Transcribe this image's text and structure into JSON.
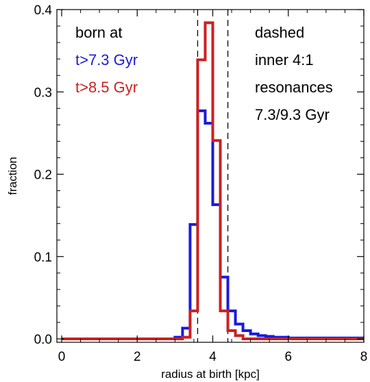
{
  "chart_data": {
    "type": "step-histogram",
    "xlabel": "radius at birth [kpc]",
    "ylabel": "fraction",
    "xlim": [
      0,
      8
    ],
    "ylim": [
      0,
      0.4
    ],
    "x_ticks": [
      0,
      2,
      4,
      6,
      8
    ],
    "y_ticks": [
      0.0,
      0.1,
      0.2,
      0.3,
      0.4
    ],
    "x_tick_labels": [
      "0",
      "2",
      "4",
      "6",
      "8"
    ],
    "y_tick_labels": [
      "0.0",
      "0.1",
      "0.2",
      "0.3",
      "0.4"
    ],
    "bin_width": 0.2,
    "bin_edges_start": 0,
    "series": [
      {
        "name": "t>7.3 Gyr",
        "color": "#1a1adb",
        "values": [
          0,
          0,
          0,
          0,
          0,
          0,
          0,
          0,
          0,
          0,
          0,
          0,
          0,
          0,
          0,
          0.002,
          0.013,
          0.139,
          0.277,
          0.262,
          0.163,
          0.075,
          0.034,
          0.018,
          0.01,
          0.006,
          0.004,
          0.003,
          0.002,
          0.002,
          0.001,
          0.001,
          0.001,
          0.001,
          0.001,
          0.001,
          0.001,
          0.001,
          0.001,
          0.001
        ]
      },
      {
        "name": "t>8.5 Gyr",
        "color": "#cc2020",
        "values": [
          0,
          0,
          0,
          0,
          0,
          0,
          0,
          0,
          0,
          0,
          0,
          0,
          0,
          0,
          0,
          0,
          0.002,
          0.034,
          0.339,
          0.384,
          0.241,
          0.034,
          0.01,
          0.004,
          0,
          0,
          0,
          0,
          0,
          0,
          0,
          0,
          0,
          0,
          0,
          0,
          0,
          0,
          0,
          0
        ]
      }
    ],
    "vlines": [
      3.6,
      4.4
    ],
    "annotations": {
      "left_title": "born at",
      "legend": [
        "t>7.3 Gyr",
        "t>8.5 Gyr"
      ],
      "right_lines": [
        "dashed",
        "inner 4:1",
        "resonances",
        "7.3/9.3 Gyr"
      ]
    }
  }
}
